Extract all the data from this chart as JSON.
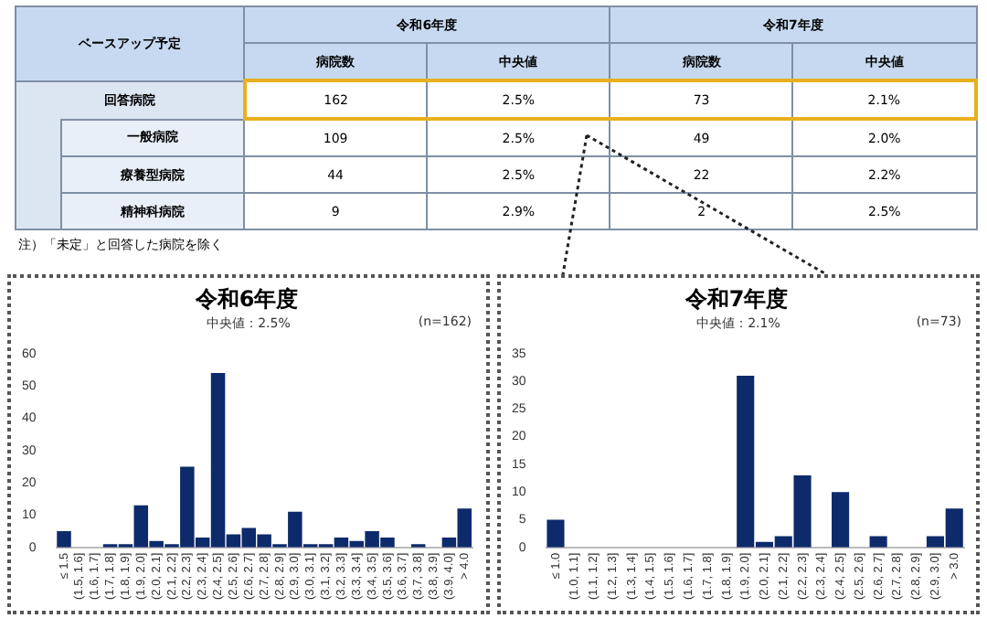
{
  "chart_data": [
    {
      "type": "other",
      "title": "ベースアップ予定",
      "categories": [
        "病院数",
        "中央値",
        "病院数",
        "中央値"
      ],
      "y_categories": [
        "回答病院",
        "一般病院",
        "療養型病院",
        "精神科病院"
      ],
      "cell_labels": [
        [
          "162",
          "2.5%",
          "73",
          "2.1%"
        ],
        [
          "109",
          "2.5%",
          "49",
          "2.0%"
        ],
        [
          "44",
          "2.5%",
          "22",
          "2.2%"
        ],
        [
          "9",
          "2.9%",
          "2",
          "2.5%"
        ]
      ],
      "annotations": [
        "令和6年度",
        "令和7年度",
        "注）「未定」と回答した病院を除く"
      ]
    },
    {
      "type": "bar",
      "title": "令和6年度",
      "annotations": [
        "中央値：2.5%",
        "(n=162)"
      ],
      "categories": [
        "≤ 1.5",
        "(1.5, 1.6]",
        "(1.6, 1.7]",
        "(1.7, 1.8]",
        "(1.8, 1.9]",
        "(1.9, 2.0]",
        "(2.0, 2.1]",
        "(2.1, 2.2]",
        "(2.2, 2.3]",
        "(2.3, 2.4]",
        "(2.4, 2.5]",
        "(2.5, 2.6]",
        "(2.6, 2.7]",
        "(2.7, 2.8]",
        "(2.8, 2.9]",
        "(2.9, 3.0]",
        "(3.0, 3.1]",
        "(3.1, 3.2]",
        "(3.2, 3.3]",
        "(3.3, 3.4]",
        "(3.4, 3.5]",
        "(3.5, 3.6]",
        "(3.6, 3.7]",
        "(3.7, 3.8]",
        "(3.8, 3.9]",
        "(3.9, 4.0]",
        "> 4.0"
      ],
      "values": [
        5,
        0,
        0,
        1,
        1,
        13,
        2,
        1,
        25,
        3,
        54,
        4,
        6,
        4,
        1,
        11,
        1,
        1,
        3,
        2,
        5,
        3,
        0,
        1,
        0,
        3,
        12
      ],
      "color": "#0d2a6b",
      "ylim": [
        0,
        60
      ],
      "yticks": [
        0,
        10,
        20,
        30,
        40,
        50,
        60
      ],
      "grid": false,
      "legend": false
    },
    {
      "type": "bar",
      "title": "令和7年度",
      "annotations": [
        "中央値：2.1%",
        "(n=73)"
      ],
      "categories": [
        "≤ 1.0",
        "(1.0, 1.1]",
        "(1.1, 1.2]",
        "(1.2, 1.3]",
        "(1.3, 1.4]",
        "(1.4, 1.5]",
        "(1.5, 1.6]",
        "(1.6, 1.7]",
        "(1.7, 1.8]",
        "(1.8, 1.9]",
        "(1.9, 2.0]",
        "(2.0, 2.1]",
        "(2.1, 2.2]",
        "(2.2, 2.3]",
        "(2.3, 2.4]",
        "(2.4, 2.5]",
        "(2.5, 2.6]",
        "(2.6, 2.7]",
        "(2.7, 2.8]",
        "(2.8, 2.9]",
        "(2.9, 3.0]",
        "> 3.0"
      ],
      "values": [
        5,
        0,
        0,
        0,
        0,
        0,
        0,
        0,
        0,
        0,
        31,
        1,
        2,
        13,
        0,
        10,
        0,
        2,
        0,
        0,
        2,
        7
      ],
      "color": "#0d2a6b",
      "ylim": [
        0,
        35
      ],
      "yticks": [
        0,
        5,
        10,
        15,
        20,
        25,
        30,
        35
      ],
      "grid": false,
      "legend": false
    }
  ]
}
